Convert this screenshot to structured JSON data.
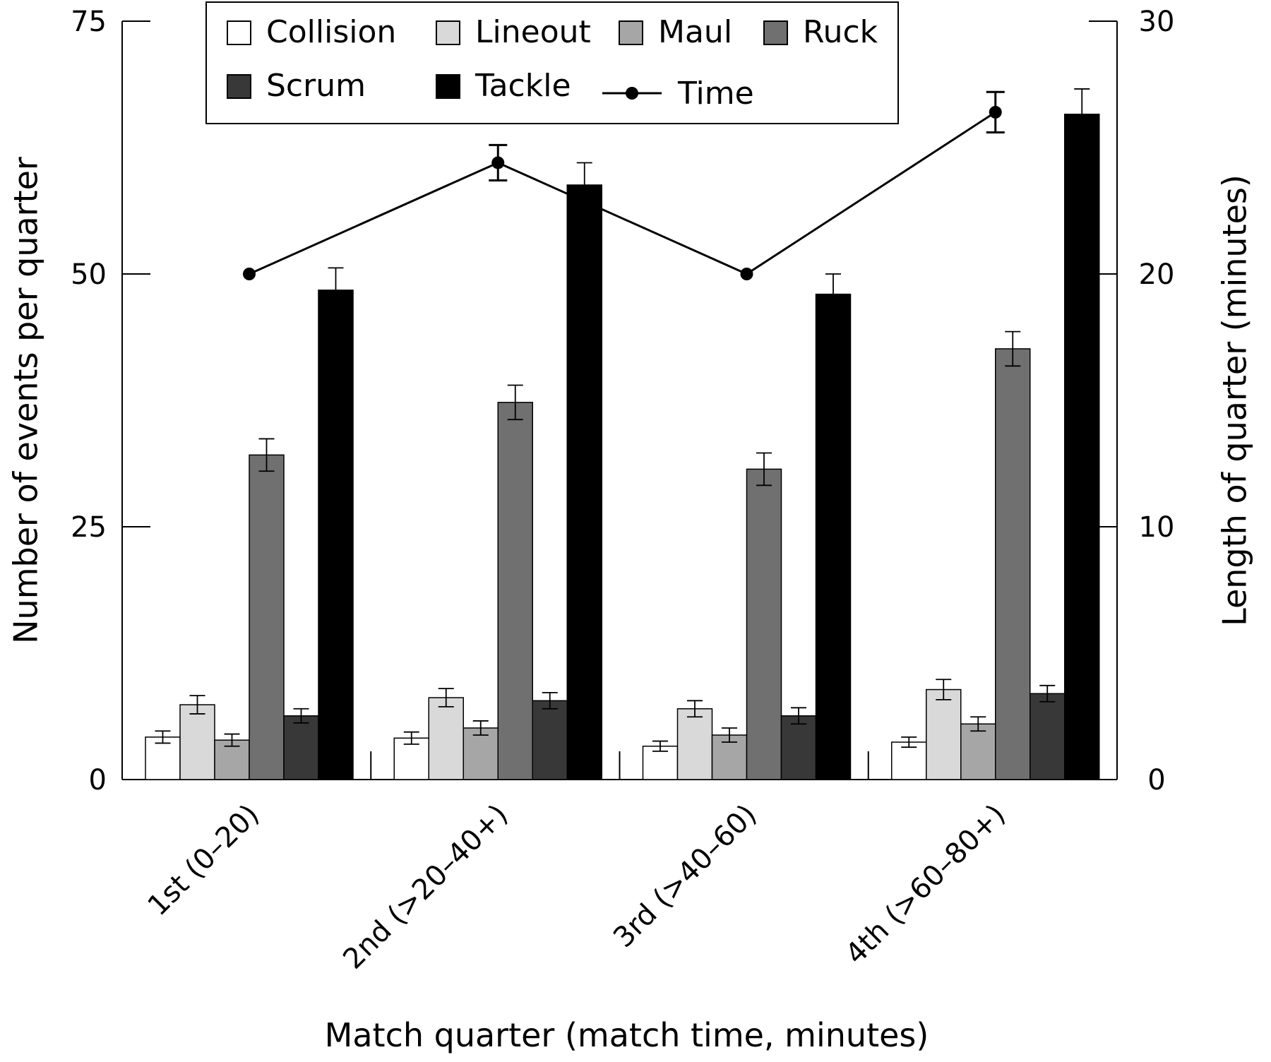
{
  "chart_data": {
    "type": "bar",
    "xlabel": "Match quarter (match time, minutes)",
    "ylabel_left": "Number of events per quarter",
    "ylabel_right": "Length of quarter (minutes)",
    "ylim_left": [
      0,
      75
    ],
    "ylim_right": [
      0,
      30
    ],
    "yticks_left": [
      "0",
      "25",
      "50",
      "75"
    ],
    "yticks_right": [
      "0",
      "10",
      "20",
      "30"
    ],
    "grid": false,
    "legend_position": "top",
    "categories": [
      "1st (0–20)",
      "2nd (>20–40+)",
      "3rd (>40–60)",
      "4th (>60–80+)"
    ],
    "series": [
      {
        "name": "Collision",
        "color": "#ffffff",
        "values": [
          4.2,
          4.1,
          3.3,
          3.7
        ],
        "errors": [
          0.6,
          0.6,
          0.5,
          0.5
        ]
      },
      {
        "name": "Lineout",
        "color": "#d9d9d9",
        "values": [
          7.4,
          8.1,
          7.0,
          8.9
        ],
        "errors": [
          0.9,
          0.9,
          0.8,
          1.0
        ]
      },
      {
        "name": "Maul",
        "color": "#a6a6a6",
        "values": [
          3.9,
          5.1,
          4.4,
          5.5
        ],
        "errors": [
          0.6,
          0.7,
          0.7,
          0.7
        ]
      },
      {
        "name": "Ruck",
        "color": "#707070",
        "values": [
          32.1,
          37.3,
          30.7,
          42.6
        ],
        "errors": [
          1.6,
          1.7,
          1.6,
          1.7
        ]
      },
      {
        "name": "Scrum",
        "color": "#383838",
        "values": [
          6.3,
          7.8,
          6.3,
          8.5
        ],
        "errors": [
          0.7,
          0.8,
          0.8,
          0.8
        ]
      },
      {
        "name": "Tackle",
        "color": "#000000",
        "values": [
          48.4,
          58.8,
          48.0,
          65.8
        ],
        "errors": [
          2.2,
          2.2,
          2.0,
          2.5
        ]
      }
    ],
    "line_series": {
      "name": "Time",
      "axis": "right",
      "color": "#000000",
      "values": [
        20.0,
        24.4,
        20.0,
        26.4
      ],
      "errors": [
        0.0,
        0.7,
        0.0,
        0.8
      ]
    }
  }
}
